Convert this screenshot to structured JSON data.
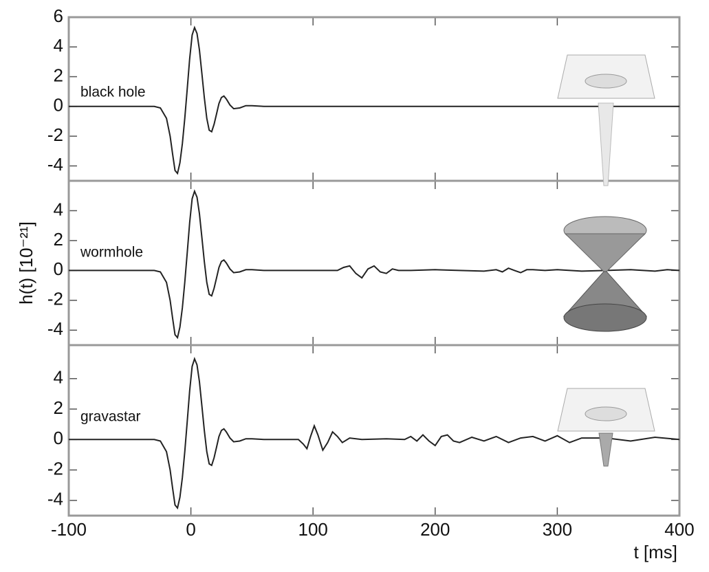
{
  "chart_data": [
    {
      "type": "line",
      "annotation": "black hole",
      "xlim": [
        -100,
        400
      ],
      "ylim": [
        -5,
        6
      ],
      "yticks": [
        6,
        4,
        2,
        0,
        -2,
        -4
      ],
      "x": [
        -100,
        -30,
        -25,
        -20,
        -17,
        -15,
        -13,
        -11,
        -9,
        -7,
        -5,
        -3,
        -1,
        1,
        3,
        5,
        7,
        9,
        11,
        13,
        15,
        17,
        19,
        21,
        23,
        25,
        27,
        29,
        32,
        35,
        40,
        45,
        50,
        60,
        400
      ],
      "series": [
        {
          "color": "#222222",
          "values": [
            0,
            0,
            -0.1,
            -0.8,
            -2,
            -3.2,
            -4.3,
            -4.5,
            -3.8,
            -2.5,
            -0.8,
            1.2,
            3.2,
            4.8,
            5.3,
            4.9,
            3.8,
            2.2,
            0.6,
            -0.8,
            -1.6,
            -1.7,
            -1.2,
            -0.5,
            0.2,
            0.6,
            0.7,
            0.5,
            0.1,
            -0.15,
            -0.1,
            0.05,
            0.05,
            0,
            0
          ]
        }
      ]
    },
    {
      "type": "line",
      "annotation": "wormhole",
      "ylabel": "h(t) [10⁻²¹]",
      "xlim": [
        -100,
        400
      ],
      "ylim": [
        -5,
        6
      ],
      "yticks": [
        4,
        2,
        0,
        -2,
        -4
      ],
      "x": [
        -100,
        -30,
        -25,
        -20,
        -17,
        -15,
        -13,
        -11,
        -9,
        -7,
        -5,
        -3,
        -1,
        1,
        3,
        5,
        7,
        9,
        11,
        13,
        15,
        17,
        19,
        21,
        23,
        25,
        27,
        29,
        32,
        35,
        40,
        45,
        50,
        60,
        110,
        120,
        125,
        130,
        135,
        140,
        145,
        150,
        155,
        160,
        165,
        170,
        180,
        200,
        220,
        240,
        250,
        255,
        260,
        265,
        270,
        275,
        280,
        290,
        300,
        320,
        340,
        360,
        380,
        390,
        400
      ],
      "series": [
        {
          "color": "#222222",
          "values": [
            0,
            0,
            -0.1,
            -0.8,
            -2,
            -3.2,
            -4.3,
            -4.5,
            -3.8,
            -2.5,
            -0.8,
            1.2,
            3.2,
            4.8,
            5.3,
            4.9,
            3.8,
            2.2,
            0.6,
            -0.8,
            -1.6,
            -1.7,
            -1.2,
            -0.5,
            0.2,
            0.6,
            0.7,
            0.5,
            0.1,
            -0.15,
            -0.1,
            0.05,
            0.05,
            0,
            0,
            0,
            0.2,
            0.3,
            -0.2,
            -0.5,
            0.1,
            0.3,
            -0.1,
            -0.2,
            0.1,
            0,
            0,
            0.05,
            0,
            -0.05,
            0.05,
            -0.1,
            0.15,
            0,
            -0.15,
            0.05,
            0.05,
            0,
            0.05,
            -0.05,
            0,
            0.05,
            -0.05,
            0.05,
            0
          ]
        }
      ]
    },
    {
      "type": "line",
      "annotation": "gravastar",
      "xlabel": "t [ms]",
      "xlim": [
        -100,
        400
      ],
      "ylim": [
        -5,
        6.2
      ],
      "yticks": [
        4,
        2,
        0,
        -2,
        -4
      ],
      "xticks": [
        -100,
        0,
        100,
        200,
        300,
        400
      ],
      "x": [
        -100,
        -30,
        -25,
        -20,
        -17,
        -15,
        -13,
        -11,
        -9,
        -7,
        -5,
        -3,
        -1,
        1,
        3,
        5,
        7,
        9,
        11,
        13,
        15,
        17,
        19,
        21,
        23,
        25,
        27,
        29,
        32,
        35,
        40,
        45,
        50,
        60,
        88,
        92,
        95,
        98,
        101,
        104,
        108,
        112,
        116,
        120,
        124,
        130,
        140,
        160,
        175,
        180,
        185,
        190,
        195,
        200,
        205,
        210,
        215,
        220,
        230,
        240,
        250,
        260,
        270,
        280,
        290,
        300,
        310,
        320,
        340,
        360,
        380,
        400
      ],
      "series": [
        {
          "color": "#222222",
          "values": [
            0,
            0,
            -0.1,
            -0.8,
            -2,
            -3.2,
            -4.3,
            -4.5,
            -3.8,
            -2.5,
            -0.8,
            1.2,
            3.2,
            4.8,
            5.3,
            4.9,
            3.8,
            2.2,
            0.6,
            -0.8,
            -1.6,
            -1.7,
            -1.2,
            -0.5,
            0.2,
            0.6,
            0.7,
            0.5,
            0.1,
            -0.15,
            -0.1,
            0.05,
            0.05,
            0,
            0,
            -0.3,
            -0.6,
            0.2,
            0.9,
            0.3,
            -0.7,
            -0.2,
            0.5,
            0.2,
            -0.2,
            0.1,
            0,
            0.05,
            0,
            0.2,
            -0.1,
            0.3,
            -0.1,
            -0.4,
            0.2,
            0.3,
            -0.1,
            -0.2,
            0.15,
            -0.1,
            0.2,
            -0.2,
            0.1,
            0.2,
            -0.1,
            0.25,
            -0.2,
            0.1,
            0.1,
            -0.1,
            0.15,
            0
          ]
        }
      ]
    }
  ]
}
